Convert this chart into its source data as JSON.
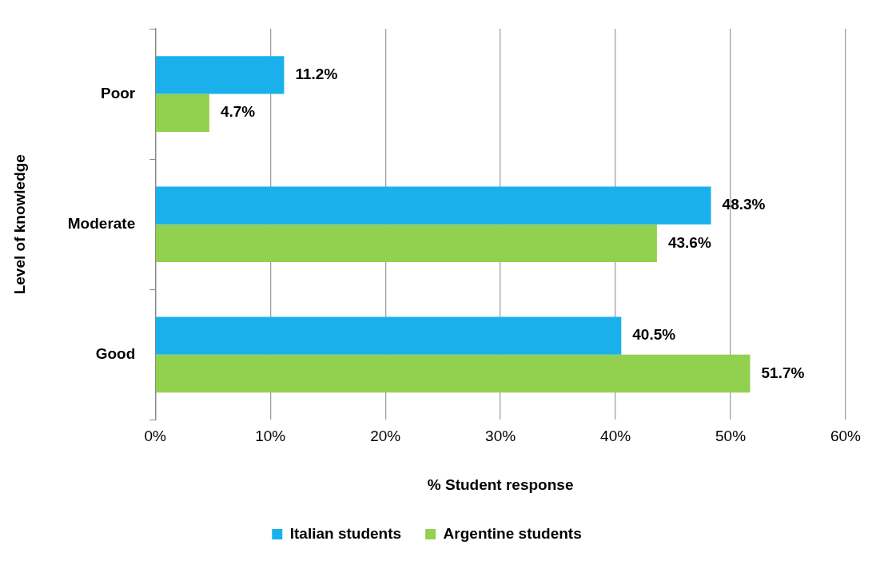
{
  "chart_data": {
    "type": "bar",
    "orientation": "horizontal",
    "xlabel": "% Student response",
    "ylabel": "Level of knowledge",
    "categories": [
      "Poor",
      "Moderate",
      "Good"
    ],
    "series": [
      {
        "name": "Italian students",
        "color": "#1ab0ec",
        "values": [
          11.2,
          48.3,
          40.5
        ],
        "value_labels": [
          "11.2%",
          "48.3%",
          "40.5%"
        ]
      },
      {
        "name": "Argentine students",
        "color": "#92d050",
        "values": [
          4.7,
          43.6,
          51.7
        ],
        "value_labels": [
          "4.7%",
          "43.6%",
          "51.7%"
        ]
      }
    ],
    "xlim": [
      0,
      60
    ],
    "xticks": [
      {
        "value": 0,
        "label": "0%"
      },
      {
        "value": 10,
        "label": "10%"
      },
      {
        "value": 20,
        "label": "20%"
      },
      {
        "value": 30,
        "label": "30%"
      },
      {
        "value": 40,
        "label": "40%"
      },
      {
        "value": 50,
        "label": "50%"
      },
      {
        "value": 60,
        "label": "60%"
      }
    ],
    "grid": "x",
    "legend": "bottom"
  }
}
